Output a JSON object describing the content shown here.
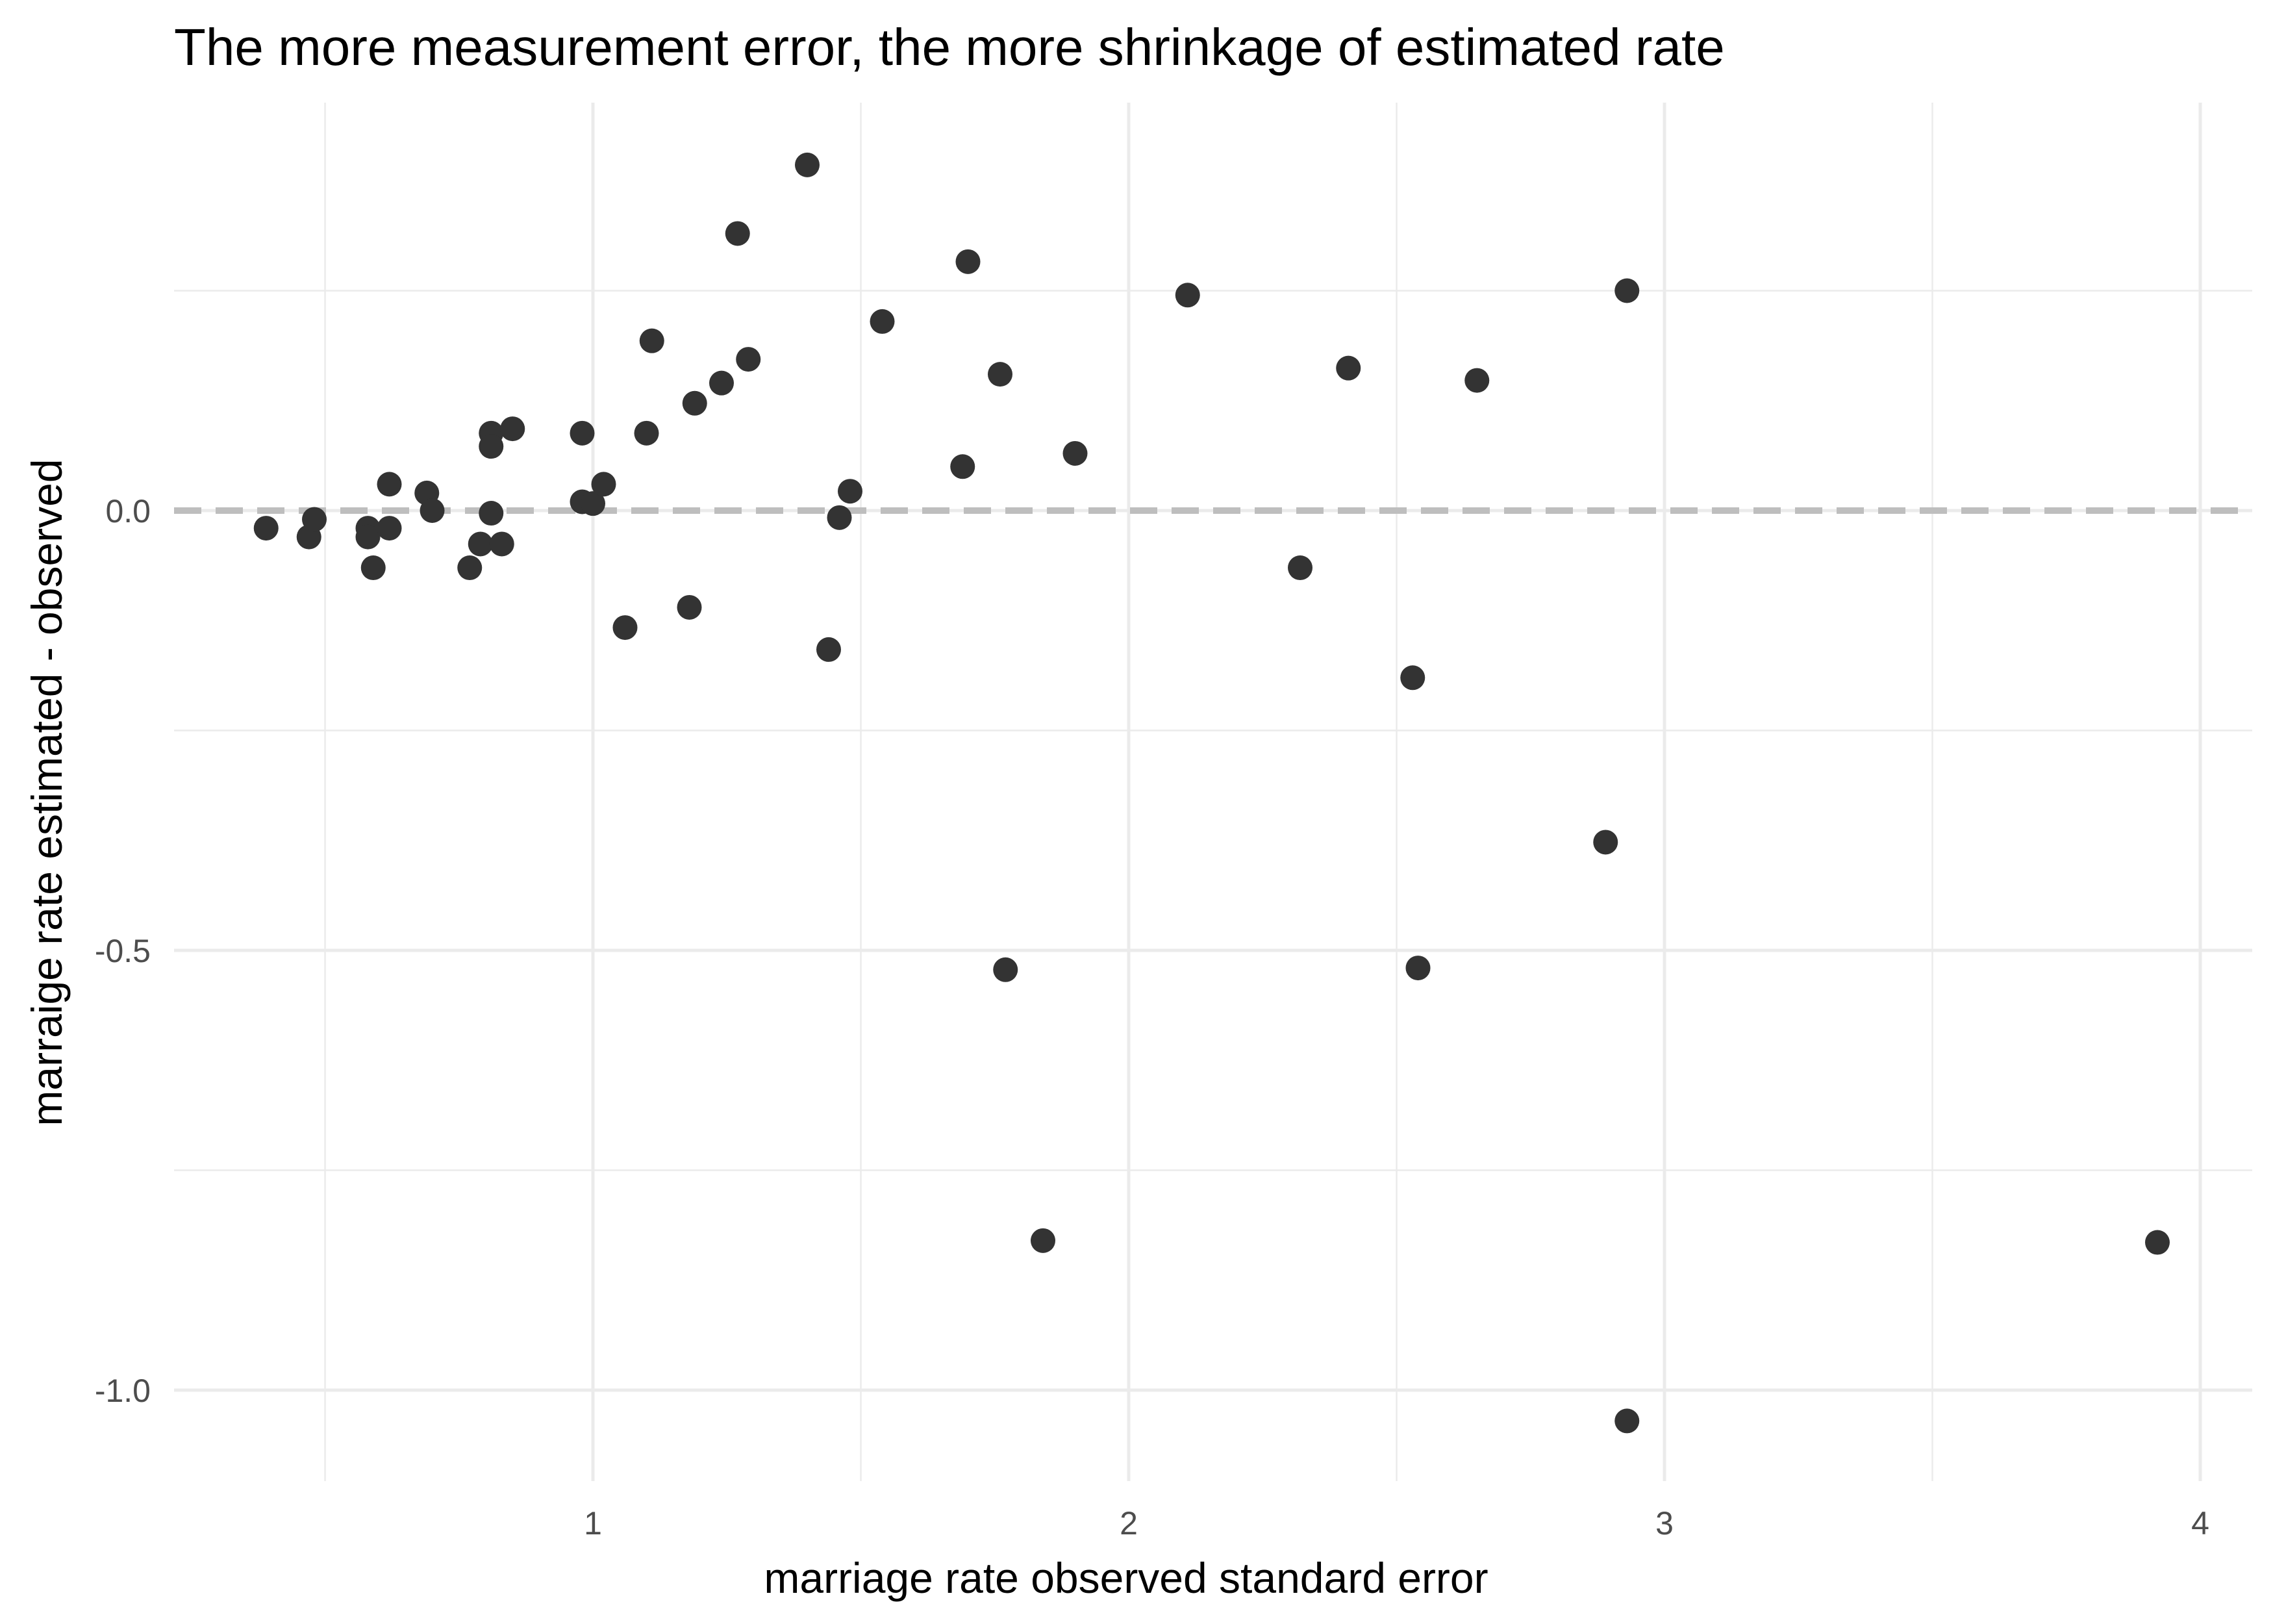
{
  "chart_data": {
    "type": "scatter",
    "title": "The more measurement error, the more shrinkage of estimated rate",
    "xlabel": "marriage rate observed standard error",
    "ylabel": "marraige rate estimated - observed",
    "xlim": [
      0.29,
      4.1
    ],
    "ylim": [
      -1.1,
      0.42
    ],
    "x_ticks": [
      1,
      2,
      3,
      4
    ],
    "x_tick_labels": [
      "1",
      "2",
      "3",
      "4"
    ],
    "y_ticks": [
      -1.0,
      -0.5,
      0.0
    ],
    "y_tick_labels": [
      "-1.0",
      "-0.5",
      "0.0"
    ],
    "x_minor_ticks": [
      0.5,
      1.5,
      2.5,
      3.5
    ],
    "y_minor_ticks": [
      -0.75,
      -0.25,
      0.25
    ],
    "grid": true,
    "reference_line": {
      "y": 0.0,
      "style": "dashed",
      "color": "#bebebe"
    },
    "point_color": "#333333",
    "points": [
      {
        "x": 0.39,
        "y": -0.02
      },
      {
        "x": 0.47,
        "y": -0.03
      },
      {
        "x": 0.48,
        "y": -0.01
      },
      {
        "x": 0.58,
        "y": -0.02
      },
      {
        "x": 0.58,
        "y": -0.03
      },
      {
        "x": 0.59,
        "y": -0.065
      },
      {
        "x": 0.62,
        "y": 0.03
      },
      {
        "x": 0.62,
        "y": -0.02
      },
      {
        "x": 0.69,
        "y": 0.02
      },
      {
        "x": 0.7,
        "y": 0.0
      },
      {
        "x": 0.77,
        "y": -0.065
      },
      {
        "x": 0.79,
        "y": -0.038
      },
      {
        "x": 0.81,
        "y": 0.088
      },
      {
        "x": 0.81,
        "y": 0.073
      },
      {
        "x": 0.81,
        "y": -0.003
      },
      {
        "x": 0.83,
        "y": -0.038
      },
      {
        "x": 0.85,
        "y": 0.093
      },
      {
        "x": 0.98,
        "y": 0.088
      },
      {
        "x": 0.98,
        "y": 0.01
      },
      {
        "x": 1.0,
        "y": 0.008
      },
      {
        "x": 1.02,
        "y": 0.03
      },
      {
        "x": 1.06,
        "y": -0.133
      },
      {
        "x": 1.1,
        "y": 0.088
      },
      {
        "x": 1.11,
        "y": 0.193
      },
      {
        "x": 1.18,
        "y": -0.11
      },
      {
        "x": 1.19,
        "y": 0.122
      },
      {
        "x": 1.24,
        "y": 0.145
      },
      {
        "x": 1.27,
        "y": 0.315
      },
      {
        "x": 1.29,
        "y": 0.172
      },
      {
        "x": 1.4,
        "y": 0.393
      },
      {
        "x": 1.44,
        "y": -0.158
      },
      {
        "x": 1.46,
        "y": -0.008
      },
      {
        "x": 1.48,
        "y": 0.022
      },
      {
        "x": 1.54,
        "y": 0.215
      },
      {
        "x": 1.69,
        "y": 0.05
      },
      {
        "x": 1.7,
        "y": 0.283
      },
      {
        "x": 1.76,
        "y": 0.155
      },
      {
        "x": 1.77,
        "y": -0.522
      },
      {
        "x": 1.84,
        "y": -0.83
      },
      {
        "x": 1.9,
        "y": 0.065
      },
      {
        "x": 2.11,
        "y": 0.245
      },
      {
        "x": 2.32,
        "y": -0.065
      },
      {
        "x": 2.41,
        "y": 0.162
      },
      {
        "x": 2.53,
        "y": -0.19
      },
      {
        "x": 2.54,
        "y": -0.52
      },
      {
        "x": 2.65,
        "y": 0.148
      },
      {
        "x": 2.89,
        "y": -0.377
      },
      {
        "x": 2.93,
        "y": 0.25
      },
      {
        "x": 2.93,
        "y": -1.035
      },
      {
        "x": 3.92,
        "y": -0.832
      }
    ]
  }
}
